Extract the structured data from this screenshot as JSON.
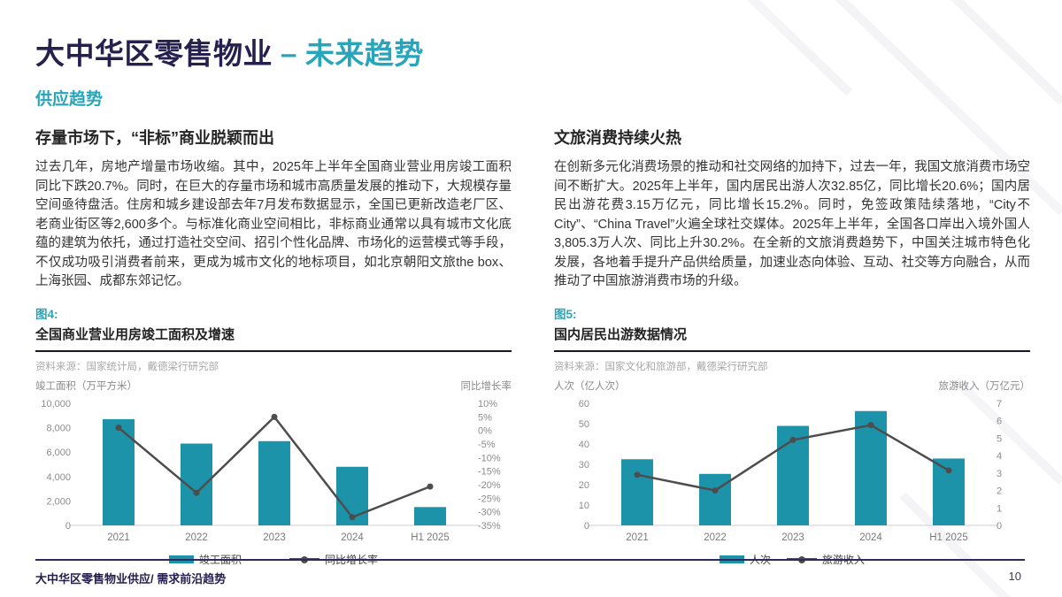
{
  "page": {
    "title_dark": "大中华区零售物业",
    "title_dash": "–",
    "title_teal": "未来趋势",
    "subtitle": "供应趋势",
    "footer": "大中华区零售物业供应/ 需求前沿趋势",
    "page_number": "10"
  },
  "colors": {
    "navy": "#26204e",
    "accent_teal": "#29a5bb",
    "bar": "#1c93a9",
    "line": "#4d4d4d",
    "axis_line": "#d8d8d8",
    "tick_text": "#8c8c8c",
    "category_text": "#7a7a7a"
  },
  "left_column": {
    "heading": "存量市场下，“非标”商业脱颖而出",
    "body": "过去几年，房地产增量市场收缩。其中，2025年上半年全国商业营业用房竣工面积同比下跌20.7%。同时，在巨大的存量市场和城市高质量发展的推动下，大规模存量空间亟待盘活。住房和城乡建设部去年7月发布数据显示，全国已更新改造老厂区、老商业街区等2,600多个。与标准化商业空间相比，非标商业通常以具有城市文化底蕴的建筑为依托，通过打造社交空间、招引个性化品牌、市场化的运营模式等手段，不仅成功吸引消费者前来，更成为城市文化的地标项目，如北京朝阳文旅the box、上海张园、成都东郊记忆。"
  },
  "right_column": {
    "heading": "文旅消费持续火热",
    "body": "在创新多元化消费场景的推动和社交网络的加持下，过去一年，我国文旅消费市场空间不断扩大。2025年上半年，国内居民出游人次32.85亿，同比增长20.6%；国内居民出游花费3.15万亿元，同比增长15.2%。同时，免签政策陆续落地，“City不City”、“China Travel”火遍全球社交媒体。2025年上半年，全国各口岸出入境外国人3,805.3万人次、同比上升30.2%。在全新的文旅消费趋势下，中国关注城市特色化发展，各地着手提升产品供给质量，加速业态向体验、互动、社交等方向融合，从而推动了中国旅游消费市场的升级。"
  },
  "chart_data": [
    {
      "type": "bar+line",
      "figure_label": "图4:",
      "title": "全国商业营业用房竣工面积及增速",
      "source": "资料来源：国家统计局，戴德梁行研究部",
      "left_axis_label": "竣工面积（万平方米）",
      "right_axis_label": "同比增长率",
      "categories": [
        "2021",
        "2022",
        "2023",
        "2024",
        "H1 2025"
      ],
      "series": [
        {
          "name": "竣工面积",
          "type": "bar",
          "axis": "left",
          "values": [
            8700,
            6700,
            6900,
            4800,
            1500
          ]
        },
        {
          "name": "同比增长率",
          "type": "line",
          "axis": "right",
          "values": [
            1,
            -23,
            5,
            -32,
            -20.7
          ]
        }
      ],
      "left_ticks": [
        "10,000",
        "8,000",
        "6,000",
        "4,000",
        "2,000",
        "0"
      ],
      "right_ticks": [
        "10%",
        "5%",
        "0%",
        "-5%",
        "-10%",
        "-15%",
        "-20%",
        "-25%",
        "-30%",
        "-35%"
      ],
      "left_range": [
        0,
        10000
      ],
      "right_range": [
        -35,
        10
      ],
      "grid": false,
      "legend_position": "bottom-center"
    },
    {
      "type": "bar+line",
      "figure_label": "图5:",
      "title": "国内居民出游数据情况",
      "source": "资料来源：国家文化和旅游部，戴德梁行研究部",
      "left_axis_label": "人次（亿人次）",
      "right_axis_label": "旅游收入（万亿元）",
      "categories": [
        "2021",
        "2022",
        "2023",
        "2024",
        "H1 2025"
      ],
      "series": [
        {
          "name": "人次",
          "type": "bar",
          "axis": "left",
          "values": [
            32.5,
            25.3,
            48.9,
            56.2,
            32.85
          ]
        },
        {
          "name": "旅游收入",
          "type": "line",
          "axis": "right",
          "values": [
            2.9,
            2.0,
            4.9,
            5.75,
            3.15
          ]
        }
      ],
      "left_ticks": [
        "60",
        "50",
        "40",
        "30",
        "20",
        "10",
        "0"
      ],
      "right_ticks": [
        "7",
        "6",
        "5",
        "4",
        "3",
        "2",
        "1",
        "0"
      ],
      "left_range": [
        0,
        60
      ],
      "right_range": [
        0,
        7
      ],
      "grid": false,
      "legend_position": "bottom-center"
    }
  ]
}
